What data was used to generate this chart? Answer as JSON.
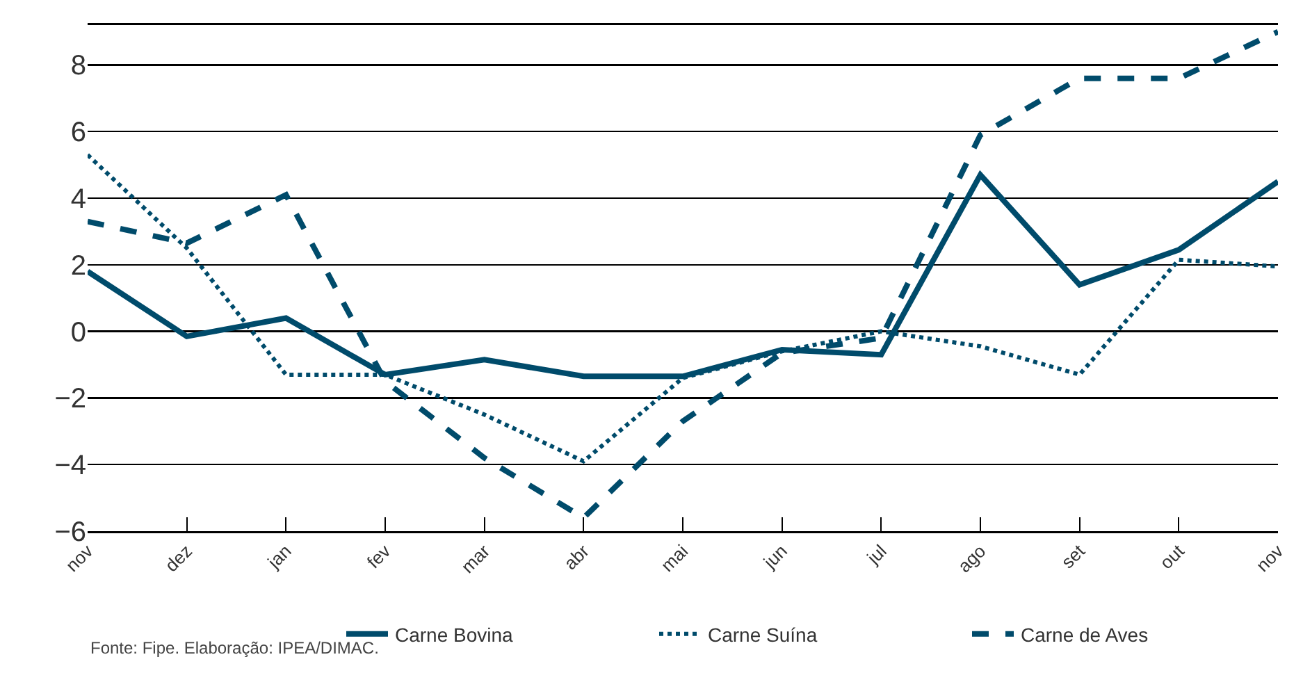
{
  "chart_data": {
    "type": "line",
    "categories": [
      "nov",
      "dez",
      "jan",
      "fev",
      "mar",
      "abr",
      "mai",
      "jun",
      "jul",
      "ago",
      "set",
      "out",
      "nov"
    ],
    "series": [
      {
        "name": "Carne Bovina",
        "color": "#004b6b",
        "line_style": "solid",
        "values": [
          1.8,
          -0.15,
          0.4,
          -1.3,
          -0.85,
          -1.35,
          -1.35,
          -0.55,
          -0.7,
          4.7,
          1.4,
          2.45,
          4.5
        ]
      },
      {
        "name": "Carne Suína",
        "color": "#004b6b",
        "line_style": "dotted",
        "values": [
          5.3,
          2.5,
          -1.3,
          -1.3,
          -2.5,
          -3.9,
          -1.4,
          -0.6,
          0,
          -0.45,
          -1.3,
          2.15,
          1.95
        ]
      },
      {
        "name": "Carne de Aves",
        "color": "#004b6b",
        "line_style": "dashed",
        "values": [
          3.3,
          2.65,
          4.1,
          -1.5,
          -3.8,
          -5.6,
          -2.7,
          -0.65,
          -0.2,
          5.9,
          7.6,
          7.6,
          9.0
        ]
      }
    ],
    "ylim": [
      -6,
      9.2
    ],
    "yticks": [
      {
        "value": -6,
        "label": "−6"
      },
      {
        "value": -4,
        "label": "−4"
      },
      {
        "value": -2,
        "label": "−2"
      },
      0,
      2,
      4,
      6,
      8
    ],
    "grid": "y",
    "legend": "bottom right",
    "annotations": [
      "Fonte: Fipe. Elaboração: IPEA/DIMAC."
    ]
  }
}
